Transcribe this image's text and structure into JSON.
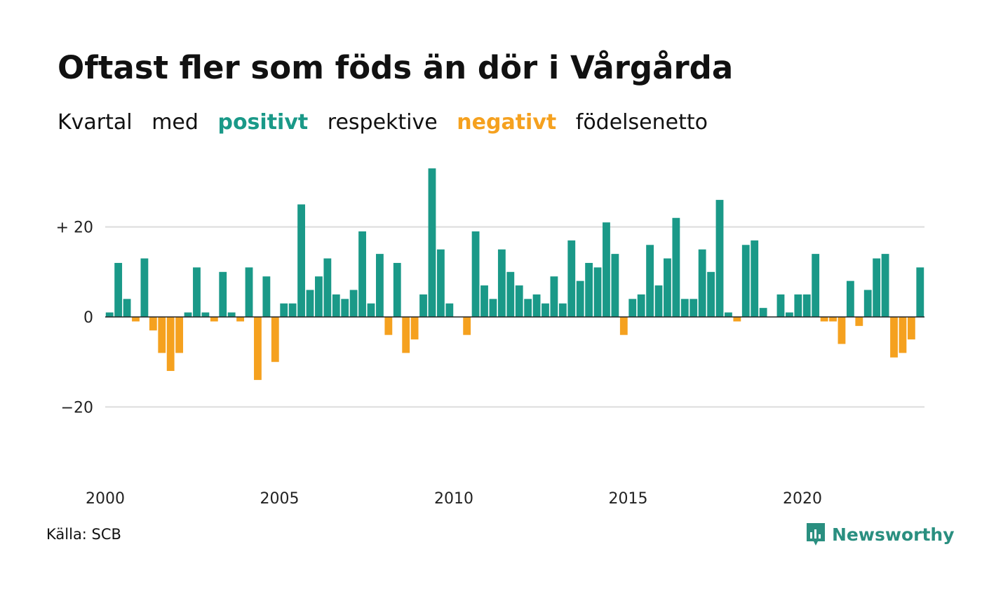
{
  "title": "Oftast fler som föds än dör i Vårgårda",
  "subtitle": {
    "part1": "Kvartal",
    "part2": "med",
    "positive_word": "positivt",
    "part3": "respektive",
    "negative_word": "negativt",
    "part4": "födelsenetto"
  },
  "colors": {
    "positive": "#1a9988",
    "negative": "#f5a11f",
    "grid": "#dcdcdc",
    "zero_line": "#222222",
    "brand": "#2a8f80"
  },
  "source": "Källa: SCB",
  "brand": {
    "name": "Newsworthy",
    "icon": "newsworthy-logo-icon"
  },
  "chart_data": {
    "type": "bar",
    "x_start_year": 2000,
    "quarters_per_year": 4,
    "values": [
      1,
      12,
      4,
      -1,
      13,
      -3,
      -8,
      -12,
      -8,
      1,
      11,
      1,
      -1,
      10,
      1,
      -1,
      11,
      -14,
      9,
      -10,
      3,
      3,
      25,
      6,
      9,
      13,
      5,
      4,
      6,
      19,
      3,
      14,
      -4,
      12,
      -8,
      -5,
      5,
      33,
      15,
      3,
      0,
      -4,
      19,
      7,
      4,
      15,
      10,
      7,
      4,
      5,
      3,
      9,
      3,
      17,
      8,
      12,
      11,
      21,
      14,
      -4,
      4,
      5,
      16,
      7,
      13,
      22,
      4,
      4,
      15,
      10,
      26,
      1,
      -1,
      16,
      17,
      2,
      0,
      5,
      1,
      5,
      5,
      14,
      -1,
      -1,
      -6,
      8,
      -2,
      6,
      13,
      14,
      -9,
      -8,
      -5,
      11
    ],
    "ylim": [
      -38,
      38
    ],
    "y_ticks": [
      {
        "value": 20,
        "label": "+ 20"
      },
      {
        "value": 0,
        "label": "0"
      },
      {
        "value": -20,
        "label": "−20"
      }
    ],
    "x_ticks": [
      {
        "value": 2000,
        "label": "2000"
      },
      {
        "value": 2005,
        "label": "2005"
      },
      {
        "value": 2010,
        "label": "2010"
      },
      {
        "value": 2015,
        "label": "2015"
      },
      {
        "value": 2020,
        "label": "2020"
      }
    ],
    "grid": true,
    "xlabel": "",
    "ylabel": ""
  }
}
